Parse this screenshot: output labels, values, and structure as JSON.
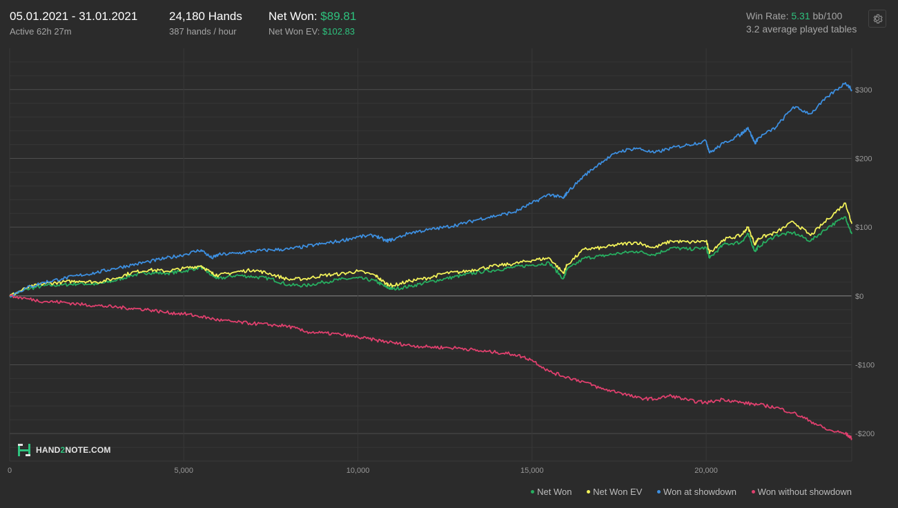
{
  "header": {
    "date_range": "05.01.2021 - 31.01.2021",
    "active": "Active 62h 27m",
    "hands": "24,180 Hands",
    "hands_per_hour": "387 hands / hour",
    "net_won_label": "Net Won:",
    "net_won_value": "$89.81",
    "net_won_ev_label": "Net Won  EV:",
    "net_won_ev_value": "$102.83",
    "win_rate_label": "Win Rate:",
    "win_rate_value": "5.31",
    "win_rate_unit": "bb/100",
    "avg_tables": "3.2 average played tables",
    "settings_icon": "gear-icon"
  },
  "logo": {
    "part1": "HAND",
    "part2": "2",
    "part3": "NOTE.COM"
  },
  "colors": {
    "net_won": "#27ae60",
    "net_won_ev": "#f3f35a",
    "won_at_showdown": "#3d8fe0",
    "won_without_showdown": "#e0406e",
    "accent_green": "#2ec27e"
  },
  "chart_data": {
    "type": "line",
    "xlim": [
      0,
      24180
    ],
    "ylim": [
      -240,
      360
    ],
    "x_ticks": [
      0,
      5000,
      10000,
      15000,
      20000
    ],
    "x_tick_labels": [
      "0",
      "5,000",
      "10,000",
      "15,000",
      "20,000"
    ],
    "y_ticks": [
      300,
      200,
      100,
      0,
      -100,
      -200
    ],
    "y_tick_labels": [
      "$300",
      "$200",
      "$100",
      "$0",
      "-$100",
      "-$200"
    ],
    "legend_position": "bottom-right",
    "series": [
      {
        "name": "Net Won",
        "color": "#27ae60",
        "points": [
          [
            0,
            0
          ],
          [
            500,
            10
          ],
          [
            1000,
            15
          ],
          [
            1500,
            16
          ],
          [
            2000,
            18
          ],
          [
            2500,
            17
          ],
          [
            3000,
            22
          ],
          [
            3500,
            30
          ],
          [
            4000,
            34
          ],
          [
            4500,
            33
          ],
          [
            5000,
            36
          ],
          [
            5500,
            42
          ],
          [
            5800,
            30
          ],
          [
            6000,
            25
          ],
          [
            6500,
            30
          ],
          [
            7000,
            28
          ],
          [
            7500,
            25
          ],
          [
            8000,
            16
          ],
          [
            8500,
            15
          ],
          [
            9000,
            20
          ],
          [
            9500,
            24
          ],
          [
            10000,
            26
          ],
          [
            10500,
            22
          ],
          [
            10800,
            13
          ],
          [
            11000,
            10
          ],
          [
            11500,
            14
          ],
          [
            12000,
            20
          ],
          [
            12500,
            25
          ],
          [
            13000,
            30
          ],
          [
            13500,
            35
          ],
          [
            14000,
            38
          ],
          [
            14500,
            42
          ],
          [
            15000,
            45
          ],
          [
            15500,
            48
          ],
          [
            15900,
            25
          ],
          [
            16000,
            38
          ],
          [
            16500,
            55
          ],
          [
            17000,
            58
          ],
          [
            17500,
            62
          ],
          [
            18000,
            65
          ],
          [
            18500,
            60
          ],
          [
            19000,
            70
          ],
          [
            19500,
            68
          ],
          [
            20000,
            70
          ],
          [
            20100,
            55
          ],
          [
            20500,
            75
          ],
          [
            21000,
            78
          ],
          [
            21200,
            90
          ],
          [
            21400,
            65
          ],
          [
            21500,
            72
          ],
          [
            22000,
            88
          ],
          [
            22500,
            92
          ],
          [
            23000,
            80
          ],
          [
            23500,
            100
          ],
          [
            24000,
            115
          ],
          [
            24180,
            90
          ]
        ]
      },
      {
        "name": "Net Won  EV",
        "color": "#f3f35a",
        "points": [
          [
            0,
            0
          ],
          [
            500,
            12
          ],
          [
            1000,
            18
          ],
          [
            1500,
            20
          ],
          [
            2000,
            22
          ],
          [
            2500,
            20
          ],
          [
            3000,
            25
          ],
          [
            3500,
            34
          ],
          [
            4000,
            38
          ],
          [
            4500,
            36
          ],
          [
            5000,
            40
          ],
          [
            5500,
            44
          ],
          [
            5800,
            33
          ],
          [
            6000,
            30
          ],
          [
            6500,
            35
          ],
          [
            7000,
            38
          ],
          [
            7500,
            32
          ],
          [
            8000,
            24
          ],
          [
            8500,
            25
          ],
          [
            9000,
            30
          ],
          [
            9500,
            32
          ],
          [
            10000,
            36
          ],
          [
            10500,
            30
          ],
          [
            10800,
            18
          ],
          [
            11000,
            15
          ],
          [
            11500,
            22
          ],
          [
            12000,
            26
          ],
          [
            12500,
            33
          ],
          [
            13000,
            35
          ],
          [
            13500,
            40
          ],
          [
            14000,
            44
          ],
          [
            14500,
            47
          ],
          [
            15000,
            52
          ],
          [
            15500,
            55
          ],
          [
            15900,
            33
          ],
          [
            16000,
            45
          ],
          [
            16500,
            68
          ],
          [
            17000,
            70
          ],
          [
            17500,
            75
          ],
          [
            18000,
            78
          ],
          [
            18500,
            70
          ],
          [
            19000,
            80
          ],
          [
            19500,
            78
          ],
          [
            20000,
            80
          ],
          [
            20100,
            63
          ],
          [
            20500,
            82
          ],
          [
            21000,
            88
          ],
          [
            21200,
            100
          ],
          [
            21400,
            75
          ],
          [
            21500,
            84
          ],
          [
            22000,
            92
          ],
          [
            22500,
            108
          ],
          [
            23000,
            88
          ],
          [
            23500,
            112
          ],
          [
            24000,
            135
          ],
          [
            24180,
            105
          ]
        ]
      },
      {
        "name": "Won at showdown",
        "color": "#3d8fe0",
        "points": [
          [
            0,
            0
          ],
          [
            500,
            12
          ],
          [
            1000,
            20
          ],
          [
            1500,
            25
          ],
          [
            2000,
            30
          ],
          [
            2500,
            34
          ],
          [
            3000,
            40
          ],
          [
            3500,
            45
          ],
          [
            4000,
            50
          ],
          [
            4500,
            55
          ],
          [
            5000,
            60
          ],
          [
            5500,
            67
          ],
          [
            5800,
            55
          ],
          [
            6000,
            60
          ],
          [
            6500,
            62
          ],
          [
            7000,
            65
          ],
          [
            7500,
            67
          ],
          [
            8000,
            68
          ],
          [
            8500,
            72
          ],
          [
            9000,
            76
          ],
          [
            9500,
            80
          ],
          [
            10000,
            86
          ],
          [
            10500,
            88
          ],
          [
            10800,
            80
          ],
          [
            11000,
            82
          ],
          [
            11500,
            92
          ],
          [
            12000,
            96
          ],
          [
            12500,
            100
          ],
          [
            13000,
            105
          ],
          [
            13500,
            112
          ],
          [
            14000,
            117
          ],
          [
            14500,
            122
          ],
          [
            15000,
            135
          ],
          [
            15500,
            148
          ],
          [
            15900,
            142
          ],
          [
            16000,
            150
          ],
          [
            16500,
            175
          ],
          [
            17000,
            195
          ],
          [
            17500,
            210
          ],
          [
            18000,
            215
          ],
          [
            18500,
            208
          ],
          [
            19000,
            215
          ],
          [
            19500,
            220
          ],
          [
            20000,
            225
          ],
          [
            20100,
            208
          ],
          [
            20500,
            222
          ],
          [
            21000,
            235
          ],
          [
            21200,
            245
          ],
          [
            21400,
            222
          ],
          [
            21500,
            230
          ],
          [
            22000,
            245
          ],
          [
            22500,
            275
          ],
          [
            23000,
            265
          ],
          [
            23500,
            290
          ],
          [
            24000,
            310
          ],
          [
            24180,
            300
          ]
        ]
      },
      {
        "name": "Won without showdown",
        "color": "#e0406e",
        "points": [
          [
            0,
            0
          ],
          [
            500,
            -4
          ],
          [
            1000,
            -8
          ],
          [
            1500,
            -9
          ],
          [
            2000,
            -12
          ],
          [
            2500,
            -14
          ],
          [
            3000,
            -16
          ],
          [
            3500,
            -18
          ],
          [
            4000,
            -20
          ],
          [
            4500,
            -24
          ],
          [
            5000,
            -26
          ],
          [
            5500,
            -30
          ],
          [
            6000,
            -35
          ],
          [
            6500,
            -38
          ],
          [
            7000,
            -40
          ],
          [
            7500,
            -42
          ],
          [
            8000,
            -44
          ],
          [
            8500,
            -52
          ],
          [
            9000,
            -54
          ],
          [
            9500,
            -56
          ],
          [
            10000,
            -60
          ],
          [
            10500,
            -64
          ],
          [
            11000,
            -68
          ],
          [
            11500,
            -72
          ],
          [
            12000,
            -74
          ],
          [
            12500,
            -75
          ],
          [
            13000,
            -76
          ],
          [
            13500,
            -80
          ],
          [
            14000,
            -82
          ],
          [
            14500,
            -85
          ],
          [
            15000,
            -93
          ],
          [
            15500,
            -110
          ],
          [
            16000,
            -118
          ],
          [
            16500,
            -125
          ],
          [
            17000,
            -135
          ],
          [
            17500,
            -140
          ],
          [
            18000,
            -148
          ],
          [
            18500,
            -150
          ],
          [
            19000,
            -145
          ],
          [
            19500,
            -152
          ],
          [
            20000,
            -155
          ],
          [
            20500,
            -150
          ],
          [
            21000,
            -155
          ],
          [
            21500,
            -158
          ],
          [
            22000,
            -162
          ],
          [
            22500,
            -170
          ],
          [
            23000,
            -182
          ],
          [
            23500,
            -195
          ],
          [
            24000,
            -200
          ],
          [
            24180,
            -207
          ]
        ]
      }
    ]
  }
}
